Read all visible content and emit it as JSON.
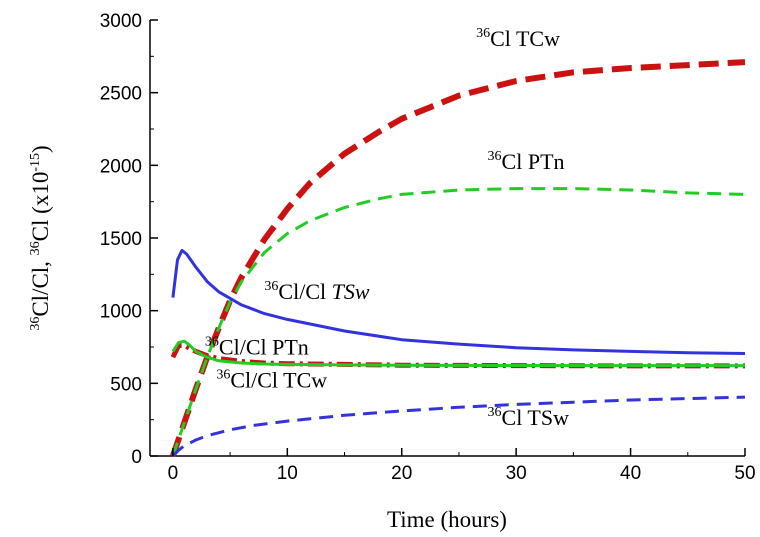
{
  "chart_data": {
    "type": "line",
    "title": "",
    "xlabel": "Time (hours)",
    "ylabel": {
      "pre": "",
      "sup1": "36",
      "mid": "Cl/Cl,  ",
      "sup2": "36",
      "mid2": "Cl (x10",
      "sup3": "-15",
      "post": ")"
    },
    "xlim": [
      -2,
      50
    ],
    "ylim": [
      0,
      3000
    ],
    "xticks": [
      "0",
      "10",
      "20",
      "30",
      "40",
      "50"
    ],
    "yticks": [
      "0",
      "500",
      "1000",
      "1500",
      "2000",
      "2500",
      "3000"
    ],
    "grid": false,
    "legend": "none",
    "series": [
      {
        "key": "cl36_tcw",
        "color": "#cc1111",
        "style": "dashed-thick",
        "x": [
          0,
          1,
          2,
          3,
          4,
          5,
          6,
          8,
          10,
          12,
          15,
          18,
          20,
          25,
          30,
          35,
          40,
          45,
          50
        ],
        "y": [
          0,
          230,
          460,
          680,
          880,
          1070,
          1230,
          1490,
          1700,
          1880,
          2080,
          2230,
          2320,
          2480,
          2580,
          2640,
          2670,
          2690,
          2710
        ]
      },
      {
        "key": "cl36_ptn",
        "color": "#22cc22",
        "style": "dashed",
        "x": [
          0,
          1,
          2,
          3,
          4,
          5,
          6,
          8,
          10,
          12,
          15,
          18,
          20,
          25,
          30,
          35,
          40,
          45,
          50
        ],
        "y": [
          0,
          230,
          460,
          680,
          880,
          1060,
          1200,
          1400,
          1530,
          1620,
          1710,
          1770,
          1800,
          1830,
          1840,
          1840,
          1830,
          1810,
          1800
        ]
      },
      {
        "key": "ratio_tsw",
        "color": "#3333dd",
        "style": "solid",
        "x": [
          0,
          0.4,
          0.8,
          1.2,
          2,
          3,
          4,
          6,
          8,
          10,
          15,
          20,
          25,
          30,
          35,
          40,
          45,
          50
        ],
        "y": [
          1090,
          1350,
          1415,
          1390,
          1300,
          1200,
          1130,
          1040,
          980,
          940,
          860,
          800,
          770,
          745,
          730,
          720,
          710,
          705
        ]
      },
      {
        "key": "ratio_ptn",
        "color": "#cc1111",
        "style": "dash-dot-thick",
        "x": [
          0,
          0.5,
          1,
          1.5,
          2,
          3,
          4,
          6,
          8,
          10,
          15,
          20,
          30,
          40,
          50
        ],
        "y": [
          680,
          760,
          760,
          740,
          720,
          690,
          670,
          650,
          640,
          635,
          630,
          625,
          622,
          620,
          620
        ]
      },
      {
        "key": "ratio_tcw",
        "color": "#22cc22",
        "style": "solid",
        "x": [
          0,
          0.5,
          1,
          1.5,
          2,
          3,
          4,
          6,
          8,
          10,
          15,
          20,
          30,
          40,
          50
        ],
        "y": [
          720,
          780,
          790,
          760,
          720,
          680,
          655,
          640,
          633,
          630,
          627,
          625,
          623,
          622,
          622
        ]
      },
      {
        "key": "cl36_tsw",
        "color": "#3333dd",
        "style": "dashed",
        "x": [
          0,
          0.5,
          1,
          2,
          3,
          5,
          7,
          10,
          15,
          20,
          25,
          30,
          35,
          40,
          45,
          50
        ],
        "y": [
          0,
          40,
          70,
          110,
          140,
          180,
          210,
          240,
          280,
          310,
          335,
          355,
          370,
          385,
          395,
          405
        ]
      }
    ],
    "annotations": [
      {
        "key": "a1",
        "sup": "36",
        "text": "Cl TCw",
        "italic": false,
        "x": 26.5,
        "y": 2820
      },
      {
        "key": "a2",
        "sup": "36",
        "text": "Cl PTn",
        "italic": false,
        "x": 27.5,
        "y": 1975
      },
      {
        "key": "a3",
        "sup": "36",
        "text": "Cl/Cl  ",
        "italic_tail": "TSw",
        "x": 8,
        "y": 1080
      },
      {
        "key": "a4",
        "sup": "36",
        "text": "Cl/Cl  PTn",
        "italic": false,
        "x": 2.8,
        "y": 700
      },
      {
        "key": "a5",
        "sup": "36",
        "text": "Cl/Cl   TCw",
        "italic": false,
        "x": 3.8,
        "y": 470
      },
      {
        "key": "a6",
        "sup": "36",
        "text": "Cl   TSw",
        "italic": false,
        "x": 27.5,
        "y": 215
      }
    ]
  }
}
